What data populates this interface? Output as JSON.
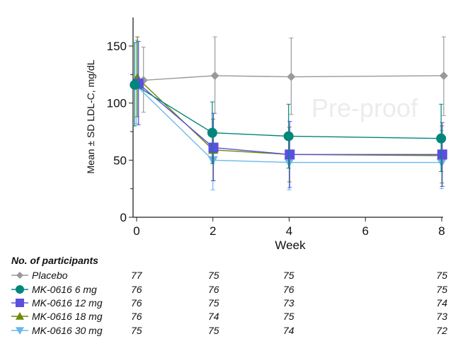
{
  "chart_data": {
    "type": "line",
    "xlabel": "Week",
    "ylabel": "Mean ± SD LDL-C, mg/dL",
    "xlim": [
      0,
      8
    ],
    "ylim": [
      0,
      175
    ],
    "xticks": [
      0,
      2,
      4,
      6,
      8
    ],
    "yticks": [
      0,
      50,
      100,
      150
    ],
    "y_minor_ticks": [
      25,
      75,
      125
    ],
    "grid": false,
    "x": [
      0,
      2,
      4,
      8
    ],
    "series": [
      {
        "name": "Placebo",
        "color": "#999999",
        "marker": "diamond",
        "values": [
          120,
          124,
          123,
          124
        ],
        "sd_low": [
          92,
          91,
          90,
          89
        ],
        "sd_high": [
          149,
          158,
          157,
          158
        ]
      },
      {
        "name": "MK-0616 6 mg",
        "color": "#00867a",
        "marker": "circle",
        "values": [
          116,
          74,
          71,
          69
        ],
        "sd_low": [
          80,
          47,
          43,
          40
        ],
        "sd_high": [
          153,
          101,
          99,
          99
        ]
      },
      {
        "name": "MK-0616 12 mg",
        "color": "#5b4fe0",
        "marker": "square",
        "values": [
          117,
          61,
          55,
          55
        ],
        "sd_low": [
          81,
          32,
          26,
          27
        ],
        "sd_high": [
          154,
          91,
          84,
          83
        ]
      },
      {
        "name": "MK-0616 18 mg",
        "color": "#6b8a00",
        "marker": "triangle-up",
        "values": [
          122,
          59,
          55,
          54
        ],
        "sd_low": [
          88,
          32,
          31,
          30
        ],
        "sd_high": [
          158,
          86,
          79,
          80
        ]
      },
      {
        "name": "MK-0616 30 mg",
        "color": "#6ab8ea",
        "marker": "triangle-down",
        "values": [
          115,
          50,
          48,
          48
        ],
        "sd_low": [
          82,
          24,
          24,
          25
        ],
        "sd_high": [
          155,
          77,
          74,
          76
        ]
      }
    ]
  },
  "participants": {
    "title": "No. of participants",
    "rows": [
      {
        "label": "Placebo",
        "counts": [
          "77",
          "75",
          "75",
          "75"
        ]
      },
      {
        "label": "MK-0616 6 mg",
        "counts": [
          "76",
          "76",
          "76",
          "75"
        ]
      },
      {
        "label": "MK-0616 12 mg",
        "counts": [
          "76",
          "75",
          "73",
          "74"
        ]
      },
      {
        "label": "MK-0616 18 mg",
        "counts": [
          "76",
          "74",
          "75",
          "73"
        ]
      },
      {
        "label": "MK-0616 30 mg",
        "counts": [
          "75",
          "75",
          "74",
          "72"
        ]
      }
    ]
  },
  "watermark": "Pre-proof"
}
